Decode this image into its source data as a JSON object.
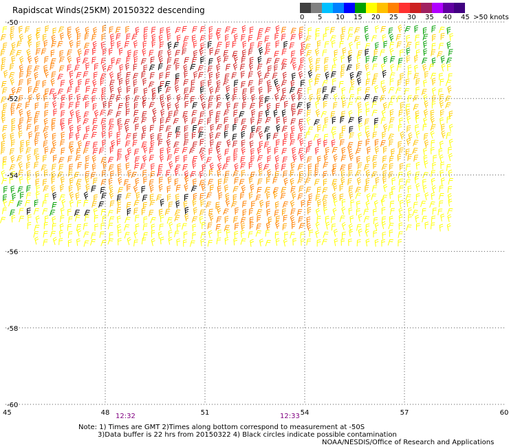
{
  "title": "Rapidscat Winds(25KM) 20150322 descending",
  "legend": {
    "colors": [
      "#404040",
      "#808080",
      "#00c0ff",
      "#0080ff",
      "#0000ff",
      "#00a000",
      "#ffff00",
      "#ffc000",
      "#ff8000",
      "#ff3030",
      "#cc2020",
      "#a02060",
      "#b000ff",
      "#6000a0",
      "#400080"
    ],
    "tick_labels": [
      "0",
      "5",
      "10",
      "15",
      "20",
      "25",
      "30",
      "35",
      "40",
      "45",
      ">50 knots"
    ]
  },
  "axes": {
    "x_ticks": [
      "45",
      "48",
      "51",
      "54",
      "57",
      "60"
    ],
    "y_ticks": [
      "-50",
      "-52",
      "-54",
      "-56",
      "-58",
      "-60"
    ]
  },
  "time_labels": [
    "12:32",
    "12:33"
  ],
  "notes": [
    "Note: 1) Times are GMT 2)Times along bottom correspond to measurement at -50S",
    "3)Data buffer is 22 hrs from 20150322 4) Black circles indicate possible contamination",
    "NOAA/NESDIS/Office of Research and Applications"
  ]
}
